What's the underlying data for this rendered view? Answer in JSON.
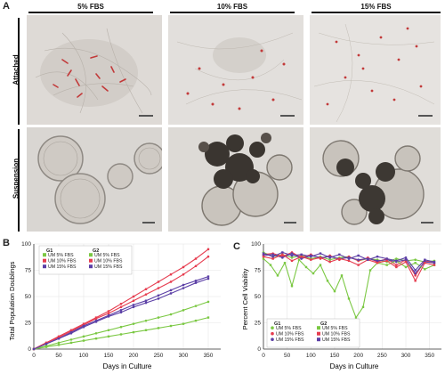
{
  "panel_a": {
    "letter": "A",
    "columns": [
      "5% FBS",
      "10% FBS",
      "15% FBS"
    ],
    "rows": [
      "Attached",
      "Suspension"
    ]
  },
  "panel_b": {
    "letter": "B",
    "ylabel": "Total Population Doublings",
    "xlabel": "Days in Culture"
  },
  "panel_c": {
    "letter": "C",
    "ylabel": "Percent Cell Viability",
    "xlabel": "Days in Culture"
  },
  "legend": {
    "group1": "G1",
    "group2": "G2",
    "entries": [
      {
        "label": "UM 5% FBS",
        "color": "#7bc843",
        "group": "G1",
        "marker": "square"
      },
      {
        "label": "UM 10% FBS",
        "color": "#e63c4f",
        "group": "G1",
        "marker": "square"
      },
      {
        "label": "UM 15% FBS",
        "color": "#5b3fa6",
        "group": "G1",
        "marker": "square"
      },
      {
        "label": "UM 5% FBS",
        "color": "#7bc843",
        "group": "G2",
        "marker": "square"
      },
      {
        "label": "UM 10% FBS",
        "color": "#e63c4f",
        "group": "G2",
        "marker": "square"
      },
      {
        "label": "UM 15% FBS",
        "color": "#5b3fa6",
        "group": "G2",
        "marker": "square"
      }
    ]
  },
  "legend_c": {
    "group1": "G1",
    "group2": "G2",
    "entries": [
      {
        "label": "UM 5% FBS",
        "color": "#7bc843",
        "group": "G1",
        "marker": "circle"
      },
      {
        "label": "UM 10% FBS",
        "color": "#e63c4f",
        "group": "G1",
        "marker": "circle"
      },
      {
        "label": "UM 15% FBS",
        "color": "#5b3fa6",
        "group": "G1",
        "marker": "circle"
      },
      {
        "label": "UM 5% FBS",
        "color": "#7bc843",
        "group": "G2",
        "marker": "square"
      },
      {
        "label": "UM 10% FBS",
        "color": "#e63c4f",
        "group": "G2",
        "marker": "square"
      },
      {
        "label": "UM 15% FBS",
        "color": "#5b3fa6",
        "group": "G2",
        "marker": "square"
      }
    ]
  },
  "chart_data": [
    {
      "type": "line",
      "xlabel": "Days in Culture",
      "ylabel": "Total Population Doublings",
      "xlim": [
        0,
        375
      ],
      "ylim": [
        0,
        100
      ],
      "xticks": [
        0,
        50,
        100,
        150,
        200,
        250,
        300,
        350
      ],
      "yticks": [
        0,
        25,
        50,
        75,
        100
      ],
      "grid": true,
      "legend_position": "top-left",
      "series": [
        {
          "name": "UM 5% FBS",
          "group": "G1",
          "color": "#7bc843",
          "x": [
            0,
            25,
            50,
            75,
            100,
            125,
            150,
            175,
            200,
            225,
            250,
            275,
            300,
            325,
            350
          ],
          "y": [
            0,
            3,
            6,
            9,
            12,
            15,
            18,
            21,
            24,
            27,
            30,
            33,
            37,
            41,
            45
          ]
        },
        {
          "name": "UM 10% FBS",
          "group": "G1",
          "color": "#e63c4f",
          "x": [
            0,
            25,
            50,
            75,
            100,
            125,
            150,
            175,
            200,
            225,
            250,
            275,
            300,
            325,
            350
          ],
          "y": [
            0,
            6,
            11,
            17,
            23,
            29,
            34,
            40,
            46,
            52,
            58,
            64,
            71,
            79,
            88
          ]
        },
        {
          "name": "UM 15% FBS",
          "group": "G1",
          "color": "#5b3fa6",
          "x": [
            0,
            25,
            50,
            75,
            100,
            125,
            150,
            175,
            200,
            225,
            250,
            275,
            300,
            325,
            350
          ],
          "y": [
            0,
            5,
            10,
            15,
            21,
            26,
            31,
            35,
            40,
            44,
            48,
            53,
            58,
            63,
            67
          ]
        },
        {
          "name": "UM 5% FBS",
          "group": "G2",
          "color": "#7bc843",
          "x": [
            0,
            25,
            50,
            75,
            100,
            125,
            150,
            175,
            200,
            225,
            250,
            275,
            300,
            325,
            350
          ],
          "y": [
            0,
            2,
            4,
            6,
            8,
            10,
            12,
            14,
            16,
            18,
            20,
            22,
            24,
            27,
            30
          ]
        },
        {
          "name": "UM 10% FBS",
          "group": "G2",
          "color": "#e63c4f",
          "x": [
            0,
            25,
            50,
            75,
            100,
            125,
            150,
            175,
            200,
            225,
            250,
            275,
            300,
            325,
            350
          ],
          "y": [
            0,
            6,
            12,
            18,
            24,
            30,
            36,
            43,
            50,
            57,
            64,
            71,
            78,
            86,
            95
          ]
        },
        {
          "name": "UM 15% FBS",
          "group": "G2",
          "color": "#5b3fa6",
          "x": [
            0,
            25,
            50,
            75,
            100,
            125,
            150,
            175,
            200,
            225,
            250,
            275,
            300,
            325,
            350
          ],
          "y": [
            0,
            5,
            10,
            16,
            22,
            27,
            32,
            37,
            42,
            46,
            51,
            56,
            61,
            65,
            69
          ]
        }
      ]
    },
    {
      "type": "line",
      "xlabel": "Days in Culture",
      "ylabel": "Percent Cell Viability",
      "xlim": [
        0,
        375
      ],
      "ylim": [
        0,
        100
      ],
      "xticks": [
        0,
        50,
        100,
        150,
        200,
        250,
        300,
        350
      ],
      "yticks": [
        0,
        25,
        50,
        75,
        100
      ],
      "grid": true,
      "legend_position": "bottom-left",
      "series": [
        {
          "name": "UM 5% FBS",
          "group": "G1",
          "color": "#7bc843",
          "x": [
            0,
            20,
            40,
            60,
            80,
            100,
            120,
            140,
            160,
            180,
            200,
            220,
            240,
            260,
            280,
            300,
            320,
            340,
            360
          ],
          "y": [
            92,
            88,
            90,
            87,
            89,
            86,
            88,
            85,
            87,
            88,
            84,
            86,
            85,
            83,
            86,
            84,
            85,
            83,
            84
          ]
        },
        {
          "name": "UM 10% FBS",
          "group": "G1",
          "color": "#e63c4f",
          "x": [
            0,
            20,
            40,
            60,
            80,
            100,
            120,
            140,
            160,
            180,
            200,
            220,
            240,
            260,
            280,
            300,
            320,
            340,
            360
          ],
          "y": [
            90,
            91,
            88,
            92,
            87,
            90,
            86,
            89,
            85,
            88,
            84,
            87,
            83,
            86,
            80,
            85,
            70,
            84,
            82
          ]
        },
        {
          "name": "UM 15% FBS",
          "group": "G1",
          "color": "#5b3fa6",
          "x": [
            0,
            20,
            40,
            60,
            80,
            100,
            120,
            140,
            160,
            180,
            200,
            220,
            240,
            260,
            280,
            300,
            320,
            340,
            360
          ],
          "y": [
            89,
            90,
            87,
            91,
            86,
            89,
            87,
            88,
            86,
            87,
            85,
            86,
            84,
            85,
            83,
            85,
            72,
            83,
            82
          ]
        },
        {
          "name": "UM 5% FBS",
          "group": "G2",
          "color": "#7bc843",
          "x": [
            0,
            15,
            30,
            45,
            60,
            75,
            90,
            105,
            120,
            135,
            150,
            165,
            180,
            195,
            210,
            225,
            240,
            260,
            280,
            300,
            320,
            340,
            360
          ],
          "y": [
            86,
            80,
            70,
            82,
            60,
            85,
            78,
            72,
            80,
            65,
            55,
            70,
            48,
            30,
            40,
            75,
            82,
            80,
            84,
            78,
            82,
            76,
            80
          ]
        },
        {
          "name": "UM 10% FBS",
          "group": "G2",
          "color": "#e63c4f",
          "x": [
            0,
            20,
            40,
            60,
            80,
            100,
            120,
            140,
            160,
            180,
            200,
            220,
            240,
            260,
            280,
            300,
            320,
            340,
            360
          ],
          "y": [
            88,
            86,
            90,
            84,
            88,
            85,
            87,
            83,
            86,
            84,
            80,
            85,
            82,
            84,
            78,
            83,
            65,
            82,
            80
          ]
        },
        {
          "name": "UM 15% FBS",
          "group": "G2",
          "color": "#5b3fa6",
          "x": [
            0,
            20,
            40,
            60,
            80,
            100,
            120,
            140,
            160,
            180,
            200,
            220,
            240,
            260,
            280,
            300,
            320,
            340,
            360
          ],
          "y": [
            91,
            88,
            92,
            89,
            90,
            88,
            91,
            87,
            90,
            86,
            89,
            85,
            88,
            86,
            84,
            87,
            75,
            85,
            83
          ]
        }
      ]
    }
  ]
}
